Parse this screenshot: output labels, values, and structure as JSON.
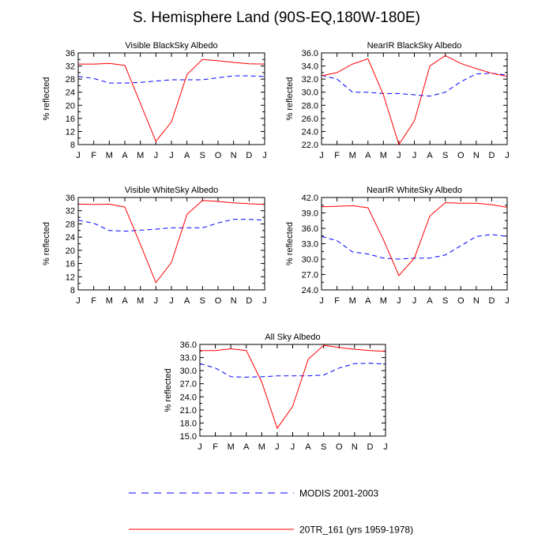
{
  "figure": {
    "title": "S. Hemisphere Land (90S-EQ,180W-180E)"
  },
  "legend": [
    {
      "label": "MODIS 2001-2003",
      "color": "#0000ff",
      "dashed": true
    },
    {
      "label": "20TR_161 (yrs 1959-1978)",
      "color": "#ff0000",
      "dashed": false
    }
  ],
  "chart_data": [
    {
      "type": "line",
      "title": "Visible BlackSky Albedo",
      "xlabel": "",
      "ylabel": "% reflected",
      "categories": [
        "J",
        "F",
        "M",
        "A",
        "M",
        "J",
        "J",
        "A",
        "S",
        "O",
        "N",
        "D",
        "J"
      ],
      "ylim": [
        8,
        36
      ],
      "yticks": [
        "8",
        "12",
        "16",
        "20",
        "24",
        "28",
        "32",
        "36"
      ],
      "series": [
        {
          "name": "MODIS 2001-2003",
          "values": [
            28.8,
            28.2,
            26.8,
            26.8,
            27.0,
            27.4,
            27.8,
            27.8,
            27.8,
            28.4,
            29.0,
            29.0,
            28.8
          ]
        },
        {
          "name": "20TR_161 (yrs 1959-1978)",
          "values": [
            32.6,
            32.6,
            32.8,
            32.2,
            20.6,
            9.0,
            14.9,
            29.4,
            34.0,
            33.6,
            33.1,
            32.7,
            32.6
          ]
        }
      ]
    },
    {
      "type": "line",
      "title": "NearIR BlackSky Albedo",
      "xlabel": "",
      "ylabel": "% reflected",
      "categories": [
        "J",
        "F",
        "M",
        "A",
        "M",
        "J",
        "J",
        "A",
        "S",
        "O",
        "N",
        "D",
        "J"
      ],
      "ylim": [
        22,
        36
      ],
      "yticks": [
        "22.0",
        "24.0",
        "26.0",
        "28.0",
        "30.0",
        "32.0",
        "34.0",
        "36.0"
      ],
      "series": [
        {
          "name": "MODIS 2001-2003",
          "values": [
            32.6,
            32.0,
            30.0,
            30.0,
            29.8,
            29.8,
            29.6,
            29.4,
            30.0,
            31.6,
            32.8,
            32.9,
            32.6
          ]
        },
        {
          "name": "20TR_161 (yrs 1959-1978)",
          "values": [
            32.5,
            33.0,
            34.3,
            35.1,
            29.6,
            22.0,
            25.6,
            34.0,
            35.6,
            34.4,
            33.6,
            32.9,
            32.4
          ]
        }
      ]
    },
    {
      "type": "line",
      "title": "Visible WhiteSky Albedo",
      "xlabel": "",
      "ylabel": "% reflected",
      "categories": [
        "J",
        "F",
        "M",
        "A",
        "M",
        "J",
        "J",
        "A",
        "S",
        "O",
        "N",
        "D",
        "J"
      ],
      "ylim": [
        8,
        36
      ],
      "yticks": [
        "8",
        "12",
        "16",
        "20",
        "24",
        "28",
        "32",
        "36"
      ],
      "series": [
        {
          "name": "MODIS 2001-2003",
          "values": [
            29.1,
            28.2,
            26.0,
            25.8,
            26.1,
            26.4,
            26.8,
            26.8,
            26.8,
            28.3,
            29.4,
            29.4,
            29.1
          ]
        },
        {
          "name": "20TR_161 (yrs 1959-1978)",
          "values": [
            34.0,
            33.9,
            34.0,
            33.1,
            21.8,
            10.2,
            16.3,
            30.9,
            35.1,
            34.8,
            34.4,
            34.1,
            33.9
          ]
        }
      ]
    },
    {
      "type": "line",
      "title": "NearIR WhiteSky Albedo",
      "xlabel": "",
      "ylabel": "% reflected",
      "categories": [
        "J",
        "F",
        "M",
        "A",
        "M",
        "J",
        "J",
        "A",
        "S",
        "O",
        "N",
        "D",
        "J"
      ],
      "ylim": [
        24,
        42
      ],
      "yticks": [
        "24.0",
        "27.0",
        "30.0",
        "33.0",
        "36.0",
        "39.0",
        "42.0"
      ],
      "series": [
        {
          "name": "MODIS 2001-2003",
          "values": [
            34.4,
            33.6,
            31.4,
            31.0,
            30.2,
            30.0,
            30.2,
            30.2,
            30.8,
            32.6,
            34.4,
            34.8,
            34.4
          ]
        },
        {
          "name": "20TR_161 (yrs 1959-1978)",
          "values": [
            40.2,
            40.3,
            40.4,
            40.0,
            33.8,
            26.8,
            30.2,
            38.4,
            41.0,
            40.9,
            40.9,
            40.6,
            40.1
          ]
        }
      ]
    },
    {
      "type": "line",
      "title": "All Sky Albedo",
      "xlabel": "",
      "ylabel": "% reflected",
      "categories": [
        "J",
        "F",
        "M",
        "A",
        "M",
        "J",
        "J",
        "A",
        "S",
        "O",
        "N",
        "D",
        "J"
      ],
      "ylim": [
        15,
        36
      ],
      "yticks": [
        "15.0",
        "18.0",
        "21.0",
        "24.0",
        "27.0",
        "30.0",
        "33.0",
        "36.0"
      ],
      "series": [
        {
          "name": "MODIS 2001-2003",
          "values": [
            31.6,
            30.6,
            28.6,
            28.5,
            28.6,
            28.8,
            28.8,
            28.8,
            29.0,
            30.6,
            31.6,
            31.7,
            31.5
          ]
        },
        {
          "name": "20TR_161 (yrs 1959-1978)",
          "values": [
            34.6,
            34.6,
            35.0,
            34.6,
            27.4,
            16.8,
            21.8,
            32.6,
            35.8,
            35.3,
            34.9,
            34.6,
            34.4
          ]
        }
      ]
    }
  ]
}
